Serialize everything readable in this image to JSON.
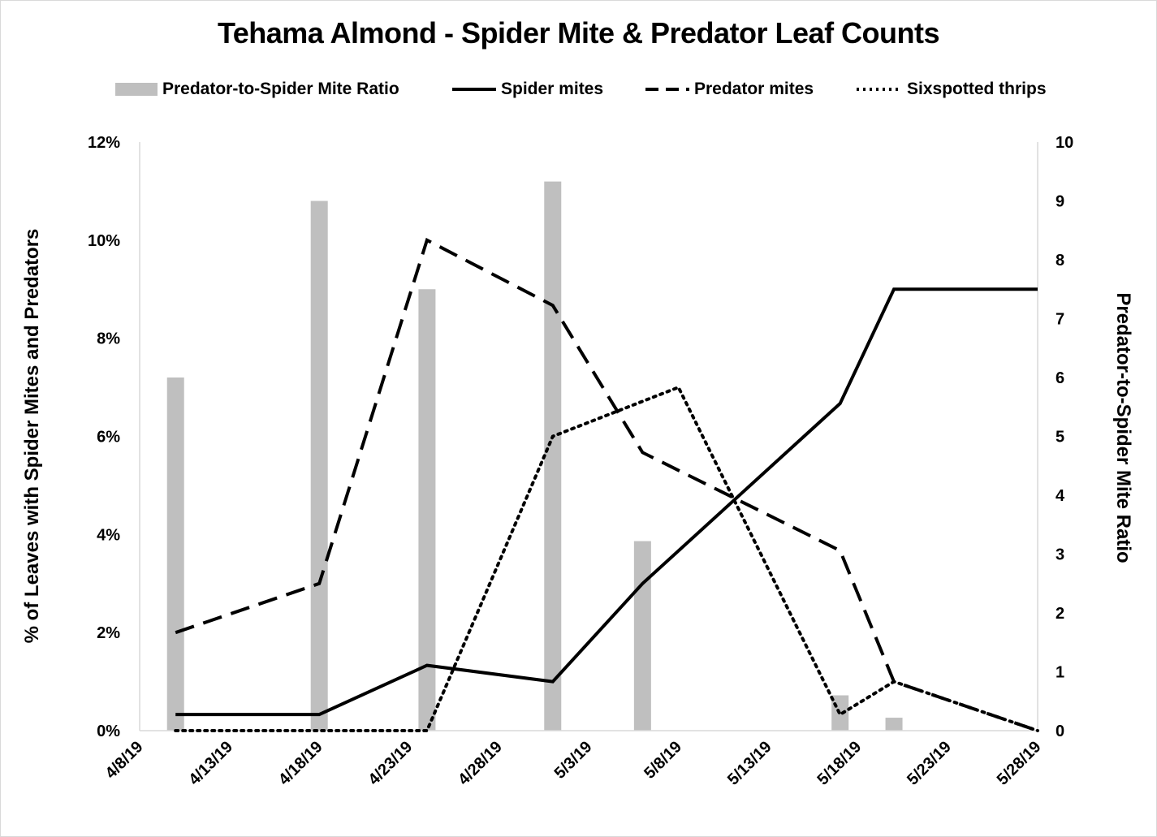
{
  "chart_data": {
    "type": "bar+line",
    "title": "Tehama Almond - Spider Mite & Predator Leaf Counts",
    "ylabel_left": "% of Leaves with Spider Mites and Predators",
    "ylabel_right": "Predator-to-Spider Mite Ratio",
    "xlabel": "",
    "x_tick_labels": [
      "4/8/19",
      "4/13/19",
      "4/18/19",
      "4/23/19",
      "4/28/19",
      "5/3/19",
      "5/8/19",
      "5/13/19",
      "5/18/19",
      "5/23/19",
      "5/28/19"
    ],
    "y_left_ticks": [
      "0%",
      "2%",
      "4%",
      "6%",
      "8%",
      "10%",
      "12%"
    ],
    "y_right_ticks": [
      "0",
      "1",
      "2",
      "3",
      "4",
      "5",
      "6",
      "7",
      "8",
      "9",
      "10"
    ],
    "xlim": [
      "2019-04-08",
      "2019-05-28"
    ],
    "ylim_left": [
      0,
      12
    ],
    "ylim_right": [
      0,
      10
    ],
    "legend_position": "top",
    "grid": false,
    "legend": [
      "Predator-to-Spider Mite Ratio",
      "Spider mites",
      "Predator mites",
      "Sixspotted thrips"
    ],
    "bars": {
      "name": "Predator-to-Spider Mite Ratio",
      "axis": "right",
      "color": "#bfbfbf",
      "x": [
        "2019-04-10",
        "2019-04-18",
        "2019-04-24",
        "2019-05-01",
        "2019-05-06",
        "2019-05-17",
        "2019-05-20"
      ],
      "values": [
        6.0,
        9.0,
        7.5,
        9.33,
        3.22,
        0.6,
        0.22
      ]
    },
    "series": [
      {
        "name": "Spider mites",
        "axis": "left",
        "style": "solid",
        "color": "#000000",
        "x": [
          "2019-04-10",
          "2019-04-18",
          "2019-04-24",
          "2019-05-01",
          "2019-05-06",
          "2019-05-17",
          "2019-05-20",
          "2019-05-28"
        ],
        "values": [
          0.33,
          0.33,
          1.33,
          1.0,
          3.0,
          6.67,
          9.0,
          9.0
        ]
      },
      {
        "name": "Predator mites",
        "axis": "left",
        "style": "dashed",
        "color": "#000000",
        "x": [
          "2019-04-10",
          "2019-04-18",
          "2019-04-24",
          "2019-05-01",
          "2019-05-06",
          "2019-05-17",
          "2019-05-20",
          "2019-05-28"
        ],
        "values": [
          2.0,
          3.0,
          10.0,
          8.67,
          5.67,
          3.67,
          1.0,
          0.0
        ]
      },
      {
        "name": "Sixspotted thrips",
        "axis": "left",
        "style": "dotted",
        "color": "#000000",
        "x": [
          "2019-04-10",
          "2019-04-18",
          "2019-04-24",
          "2019-05-01",
          "2019-05-08",
          "2019-05-17",
          "2019-05-20",
          "2019-05-28"
        ],
        "values": [
          0.0,
          0.0,
          0.0,
          6.0,
          7.0,
          0.33,
          1.0,
          0.0
        ]
      }
    ]
  }
}
